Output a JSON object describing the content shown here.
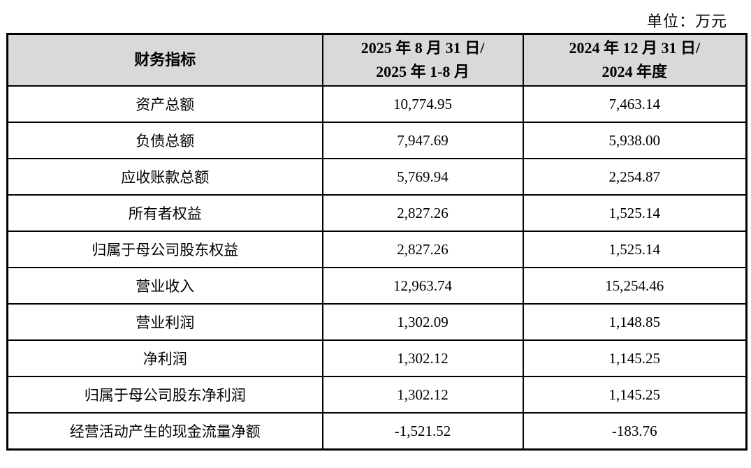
{
  "unit_label": "单位：万元",
  "table": {
    "header": {
      "indicator": "财务指标",
      "period_2025_line1": "2025 年 8 月 31 日/",
      "period_2025_line2": "2025 年 1-8 月",
      "period_2024_line1": "2024 年 12 月 31 日/",
      "period_2024_line2": "2024 年度"
    },
    "rows": [
      {
        "indicator": "资产总额",
        "v2025": "10,774.95",
        "v2024": "7,463.14"
      },
      {
        "indicator": "负债总额",
        "v2025": "7,947.69",
        "v2024": "5,938.00"
      },
      {
        "indicator": "应收账款总额",
        "v2025": "5,769.94",
        "v2024": "2,254.87"
      },
      {
        "indicator": "所有者权益",
        "v2025": "2,827.26",
        "v2024": "1,525.14"
      },
      {
        "indicator": "归属于母公司股东权益",
        "v2025": "2,827.26",
        "v2024": "1,525.14"
      },
      {
        "indicator": "营业收入",
        "v2025": "12,963.74",
        "v2024": "15,254.46"
      },
      {
        "indicator": "营业利润",
        "v2025": "1,302.09",
        "v2024": "1,148.85"
      },
      {
        "indicator": "净利润",
        "v2025": "1,302.12",
        "v2024": "1,145.25"
      },
      {
        "indicator": "归属于母公司股东净利润",
        "v2025": "1,302.12",
        "v2024": "1,145.25"
      },
      {
        "indicator": "经营活动产生的现金流量净额",
        "v2025": "-1,521.52",
        "v2024": "-183.76"
      }
    ]
  },
  "colors": {
    "header_bg": "#d9d9d9",
    "border": "#000000",
    "text": "#000000",
    "background": "#ffffff"
  }
}
